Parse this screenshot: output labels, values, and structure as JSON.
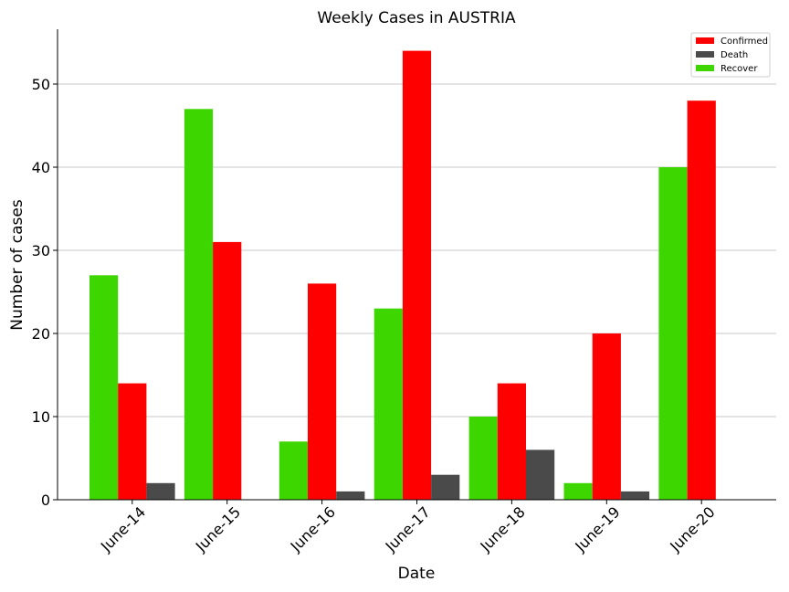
{
  "chart_data": {
    "type": "bar",
    "title": "Weekly Cases in AUSTRIA",
    "xlabel": "Date",
    "ylabel": "Number of cases",
    "categories": [
      "June-14",
      "June-15",
      "June-16",
      "June-17",
      "June-18",
      "June-19",
      "June-20"
    ],
    "ylim": [
      0,
      57
    ],
    "yticks": [
      0,
      10,
      20,
      30,
      40,
      50
    ],
    "grid": "horizontal",
    "legend_position": "top-right",
    "series": [
      {
        "name": "Recover",
        "color": "#3ed600",
        "values": [
          27,
          47,
          7,
          23,
          10,
          2,
          40
        ]
      },
      {
        "name": "Confirmed",
        "color": "#ff0000",
        "values": [
          14,
          31,
          26,
          54,
          14,
          20,
          48
        ]
      },
      {
        "name": "Death",
        "color": "#4a4a4a",
        "values": [
          2,
          0,
          1,
          3,
          6,
          1,
          0
        ]
      }
    ],
    "legend_order": [
      "Confirmed",
      "Death",
      "Recover"
    ]
  }
}
